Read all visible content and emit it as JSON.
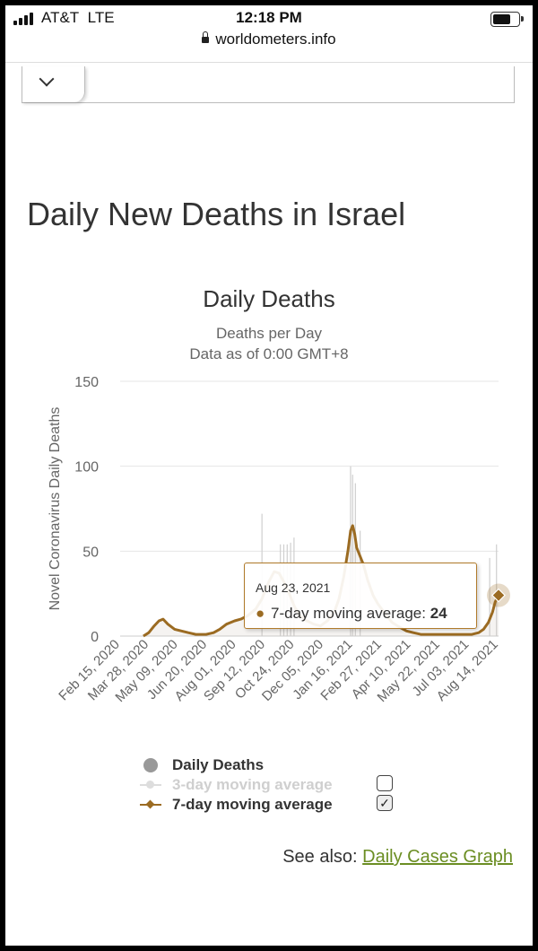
{
  "status_bar": {
    "carrier": "AT&T",
    "network": "LTE",
    "time": "12:18 PM"
  },
  "browser": {
    "url": "worldometers.info"
  },
  "page": {
    "title": "Daily New Deaths in Israel"
  },
  "chart_data": {
    "type": "line",
    "title": "Daily Deaths",
    "subtitle_1": "Deaths per Day",
    "subtitle_2": "Data as of 0:00 GMT+8",
    "ylabel": "Novel Coronavirus Daily Deaths",
    "ylim": [
      0,
      150
    ],
    "yticks": [
      "0",
      "50",
      "100",
      "150"
    ],
    "xlim": [
      "2020-02-15",
      "2021-08-23"
    ],
    "xticks": [
      "Feb 15, 2020",
      "Mar 28, 2020",
      "May 09, 2020",
      "Jun 20, 2020",
      "Aug 01, 2020",
      "Sep 12, 2020",
      "Oct 24, 2020",
      "Dec 05, 2020",
      "Jan 16, 2021",
      "Feb 27, 2021",
      "Apr 10, 2021",
      "May 22, 2021",
      "Jul 03, 2021",
      "Aug 14, 2021"
    ],
    "grid": true,
    "series": [
      {
        "name": "7-day moving average",
        "color": "#9b6b22",
        "x": [
          "2020-03-20",
          "2020-03-28",
          "2020-04-05",
          "2020-04-12",
          "2020-04-18",
          "2020-04-25",
          "2020-05-05",
          "2020-05-15",
          "2020-05-25",
          "2020-06-05",
          "2020-06-20",
          "2020-07-01",
          "2020-07-10",
          "2020-07-20",
          "2020-08-01",
          "2020-08-10",
          "2020-08-20",
          "2020-09-01",
          "2020-09-10",
          "2020-09-20",
          "2020-09-28",
          "2020-10-05",
          "2020-10-12",
          "2020-10-20",
          "2020-10-28",
          "2020-11-05",
          "2020-11-15",
          "2020-11-25",
          "2020-12-05",
          "2020-12-15",
          "2020-12-25",
          "2021-01-01",
          "2021-01-08",
          "2021-01-14",
          "2021-01-18",
          "2021-01-21",
          "2021-01-24",
          "2021-01-27",
          "2021-02-01",
          "2021-02-06",
          "2021-02-12",
          "2021-02-20",
          "2021-02-27",
          "2021-03-10",
          "2021-03-20",
          "2021-04-01",
          "2021-04-10",
          "2021-04-20",
          "2021-05-01",
          "2021-05-15",
          "2021-05-22",
          "2021-06-05",
          "2021-06-20",
          "2021-07-03",
          "2021-07-15",
          "2021-07-25",
          "2021-08-01",
          "2021-08-08",
          "2021-08-14",
          "2021-08-18",
          "2021-08-23"
        ],
        "values": [
          0,
          2,
          6,
          9,
          10,
          7,
          4,
          3,
          2,
          1,
          1,
          2,
          4,
          7,
          9,
          10,
          12,
          16,
          22,
          32,
          38,
          37,
          32,
          25,
          17,
          12,
          9,
          7,
          6,
          9,
          14,
          22,
          35,
          50,
          62,
          65,
          60,
          52,
          47,
          42,
          33,
          24,
          19,
          13,
          8,
          5,
          3,
          2,
          1,
          1,
          1,
          1,
          1,
          1,
          1,
          2,
          4,
          8,
          14,
          20,
          24
        ]
      },
      {
        "name": "Daily Deaths",
        "color": "#cfcfcf",
        "x": [
          "2020-09-10",
          "2020-10-07",
          "2020-10-12",
          "2020-10-17",
          "2020-10-22",
          "2020-10-27",
          "2021-01-18",
          "2021-01-21",
          "2021-01-25",
          "2021-02-01",
          "2021-08-10",
          "2021-08-20"
        ],
        "values": [
          72,
          54,
          54,
          54,
          55,
          58,
          100,
          95,
          90,
          62,
          46,
          54
        ]
      }
    ],
    "tooltip": {
      "date": "Aug 23, 2021",
      "label": "7-day moving average:",
      "value": "24"
    },
    "legend": [
      {
        "label": "Daily Deaths"
      },
      {
        "label": "3-day moving average"
      },
      {
        "label": "7-day moving average"
      }
    ]
  },
  "see_also": {
    "prefix": "See also:",
    "link": "Daily Cases Graph"
  }
}
